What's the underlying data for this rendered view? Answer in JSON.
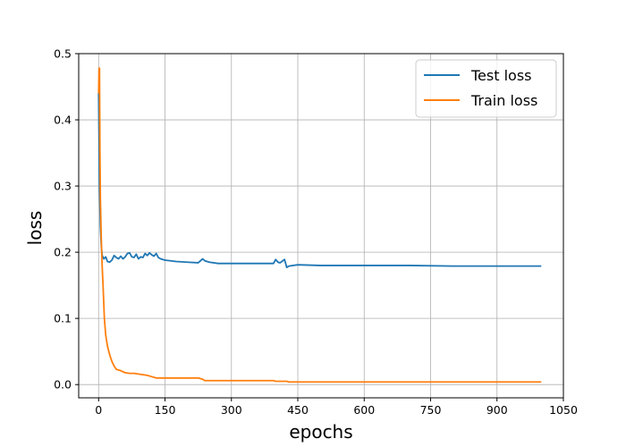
{
  "chart_data": {
    "type": "line",
    "title": "",
    "xlabel": "epochs",
    "ylabel": "loss",
    "xlim": [
      -45,
      1050
    ],
    "ylim": [
      -0.02,
      0.5
    ],
    "xticks": [
      0,
      150,
      300,
      450,
      600,
      750,
      900,
      1050
    ],
    "yticks": [
      0.0,
      0.1,
      0.2,
      0.3,
      0.4,
      0.5
    ],
    "xtick_labels": [
      "0",
      "150",
      "300",
      "450",
      "600",
      "750",
      "900",
      "1050"
    ],
    "ytick_labels": [
      "0.0",
      "0.1",
      "0.2",
      "0.3",
      "0.4",
      "0.5"
    ],
    "grid": true,
    "legend_position": "top-right",
    "series": [
      {
        "name": "Test loss",
        "color": "#1f77b4",
        "x": [
          0,
          2,
          4,
          6,
          8,
          12,
          16,
          20,
          25,
          30,
          35,
          40,
          45,
          50,
          55,
          60,
          65,
          70,
          75,
          80,
          85,
          90,
          95,
          100,
          105,
          110,
          115,
          120,
          125,
          130,
          135,
          140,
          150,
          175,
          200,
          225,
          235,
          240,
          250,
          270,
          300,
          350,
          395,
          400,
          405,
          410,
          420,
          425,
          430,
          450,
          500,
          600,
          700,
          800,
          900,
          1000
        ],
        "y": [
          0.44,
          0.3,
          0.24,
          0.21,
          0.195,
          0.19,
          0.193,
          0.186,
          0.185,
          0.188,
          0.195,
          0.192,
          0.19,
          0.194,
          0.19,
          0.193,
          0.198,
          0.199,
          0.193,
          0.192,
          0.197,
          0.19,
          0.193,
          0.192,
          0.198,
          0.195,
          0.199,
          0.196,
          0.194,
          0.198,
          0.192,
          0.19,
          0.188,
          0.186,
          0.185,
          0.184,
          0.19,
          0.187,
          0.185,
          0.183,
          0.183,
          0.183,
          0.183,
          0.189,
          0.185,
          0.184,
          0.189,
          0.177,
          0.179,
          0.181,
          0.18,
          0.18,
          0.18,
          0.179,
          0.179,
          0.179
        ]
      },
      {
        "name": "Train loss",
        "color": "#ff7f0e",
        "x": [
          0,
          1,
          2,
          3,
          4,
          6,
          8,
          10,
          13,
          16,
          20,
          25,
          30,
          35,
          40,
          50,
          60,
          70,
          80,
          90,
          100,
          110,
          120,
          130,
          140,
          150,
          175,
          200,
          225,
          235,
          240,
          250,
          300,
          350,
          395,
          400,
          425,
          430,
          450,
          500,
          600,
          700,
          800,
          900,
          1000
        ],
        "y": [
          0.44,
          0.478,
          0.478,
          0.35,
          0.28,
          0.22,
          0.18,
          0.15,
          0.1,
          0.075,
          0.058,
          0.045,
          0.035,
          0.028,
          0.023,
          0.021,
          0.018,
          0.017,
          0.017,
          0.016,
          0.015,
          0.014,
          0.012,
          0.01,
          0.01,
          0.01,
          0.01,
          0.01,
          0.01,
          0.008,
          0.006,
          0.006,
          0.006,
          0.006,
          0.006,
          0.005,
          0.005,
          0.004,
          0.004,
          0.004,
          0.004,
          0.004,
          0.004,
          0.004,
          0.004
        ]
      }
    ]
  }
}
